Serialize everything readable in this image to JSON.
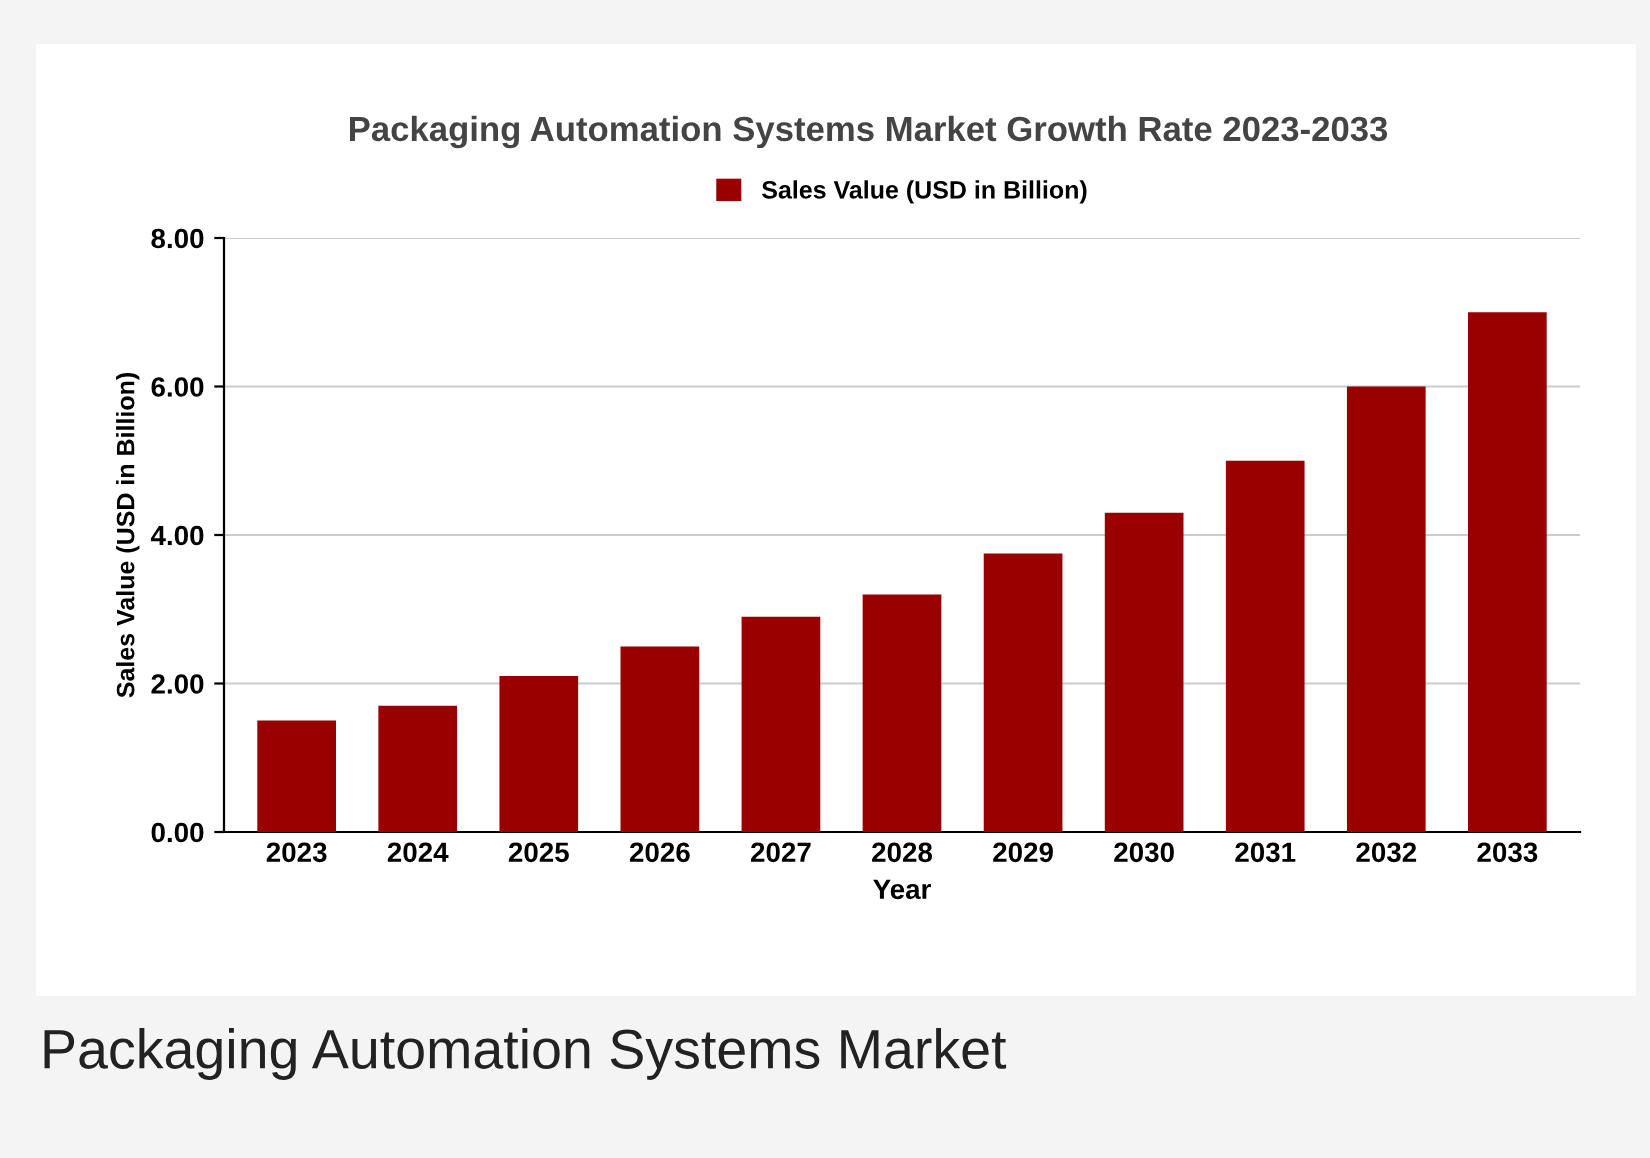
{
  "chart_data": {
    "type": "bar",
    "title": "Packaging Automation Systems Market Growth Rate 2023-2033",
    "xlabel": "Year",
    "ylabel": "Sales Value (USD in Billion)",
    "categories": [
      "2023",
      "2024",
      "2025",
      "2026",
      "2027",
      "2028",
      "2029",
      "2030",
      "2031",
      "2032",
      "2033"
    ],
    "series": [
      {
        "name": "Sales Value (USD in Billion)",
        "color": "#990000",
        "values": [
          1.5,
          1.7,
          2.1,
          2.5,
          2.9,
          3.2,
          3.75,
          4.3,
          5.0,
          6.0,
          7.0
        ]
      }
    ],
    "ylim": [
      0,
      8
    ],
    "yticks": [
      {
        "value": 0,
        "label": "0.00"
      },
      {
        "value": 2,
        "label": "2.00"
      },
      {
        "value": 4,
        "label": "4.00"
      },
      {
        "value": 6,
        "label": "6.00"
      },
      {
        "value": 8,
        "label": "8.00"
      }
    ],
    "grid": "y",
    "legend": "top",
    "annotations": [
      "Packaging Automation Systems Market"
    ]
  }
}
